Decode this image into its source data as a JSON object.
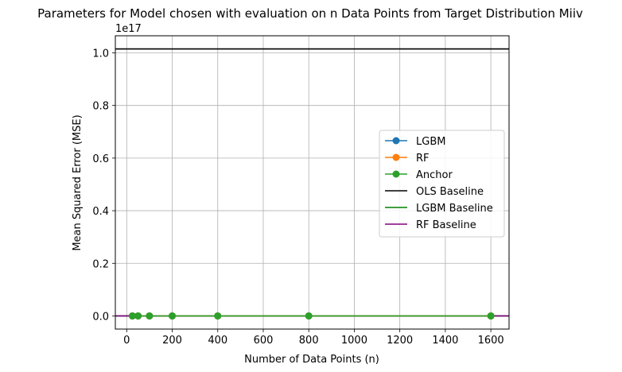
{
  "chart_data": {
    "type": "line",
    "title": "Parameters for Model chosen with evaluation on n Data Points from Target Distribution Miiv",
    "xlabel": "Number of Data Points (n)",
    "ylabel": "Mean Squared Error (MSE)",
    "y_offset_label": "1e17",
    "xlim": [
      -50,
      1680
    ],
    "ylim": [
      -0.05,
      1.065
    ],
    "x_ticks": [
      0,
      200,
      400,
      600,
      800,
      1000,
      1200,
      1400,
      1600
    ],
    "y_ticks": [
      0.0,
      0.2,
      0.4,
      0.6,
      0.8,
      1.0
    ],
    "grid": true,
    "legend_position": "center-right",
    "x": [
      25,
      50,
      100,
      200,
      400,
      800,
      1600
    ],
    "series": [
      {
        "name": "LGBM",
        "kind": "markers",
        "color": "#1f77b4",
        "values": [
          0,
          0,
          0,
          0,
          0,
          0,
          0
        ]
      },
      {
        "name": "RF",
        "kind": "markers",
        "color": "#ff7f0e",
        "values": [
          0,
          0,
          0,
          0,
          0,
          0,
          0
        ]
      },
      {
        "name": "Anchor",
        "kind": "markers",
        "color": "#2ca02c",
        "values": [
          0,
          0,
          0,
          0,
          0,
          0,
          0
        ]
      },
      {
        "name": "OLS Baseline",
        "kind": "hline",
        "color": "#000000",
        "value": 1.015
      },
      {
        "name": "LGBM Baseline",
        "kind": "hline",
        "color": "#008000",
        "value": 0
      },
      {
        "name": "RF Baseline",
        "kind": "hline",
        "color": "#800080",
        "value": 0
      }
    ]
  }
}
